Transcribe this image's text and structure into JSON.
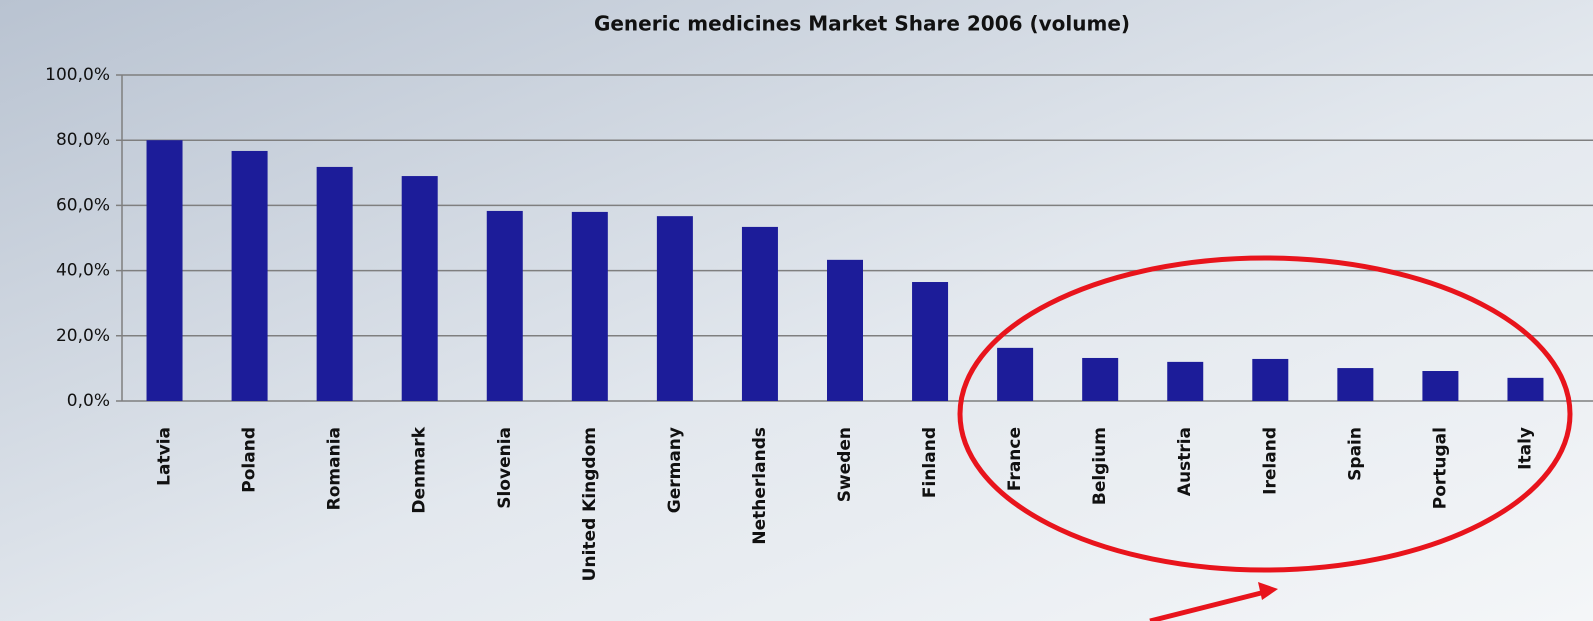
{
  "chart_data": {
    "type": "bar",
    "title": "Generic medicines Market Share 2006 (volume)",
    "categories": [
      "Latvia",
      "Poland",
      "Romania",
      "Denmark",
      "Slovenia",
      "United Kingdom",
      "Germany",
      "Netherlands",
      "Sweden",
      "Finland",
      "France",
      "Belgium",
      "Austria",
      "Ireland",
      "Spain",
      "Portugal",
      "Italy"
    ],
    "values": [
      80.0,
      76.7,
      71.8,
      69.0,
      58.3,
      58.0,
      56.7,
      53.4,
      43.3,
      36.5,
      16.3,
      13.2,
      12.0,
      12.9,
      10.1,
      9.2,
      7.1
    ],
    "color": "#1c1c99",
    "ylim": [
      0,
      100
    ],
    "yticks": [
      {
        "value": 0,
        "label": "0,0%"
      },
      {
        "value": 20,
        "label": "20,0%"
      },
      {
        "value": 40,
        "label": "40,0%"
      },
      {
        "value": 60,
        "label": "60,0%"
      },
      {
        "value": 80,
        "label": "80,0%"
      },
      {
        "value": 100,
        "label": "100,0%"
      }
    ],
    "grid": true
  }
}
